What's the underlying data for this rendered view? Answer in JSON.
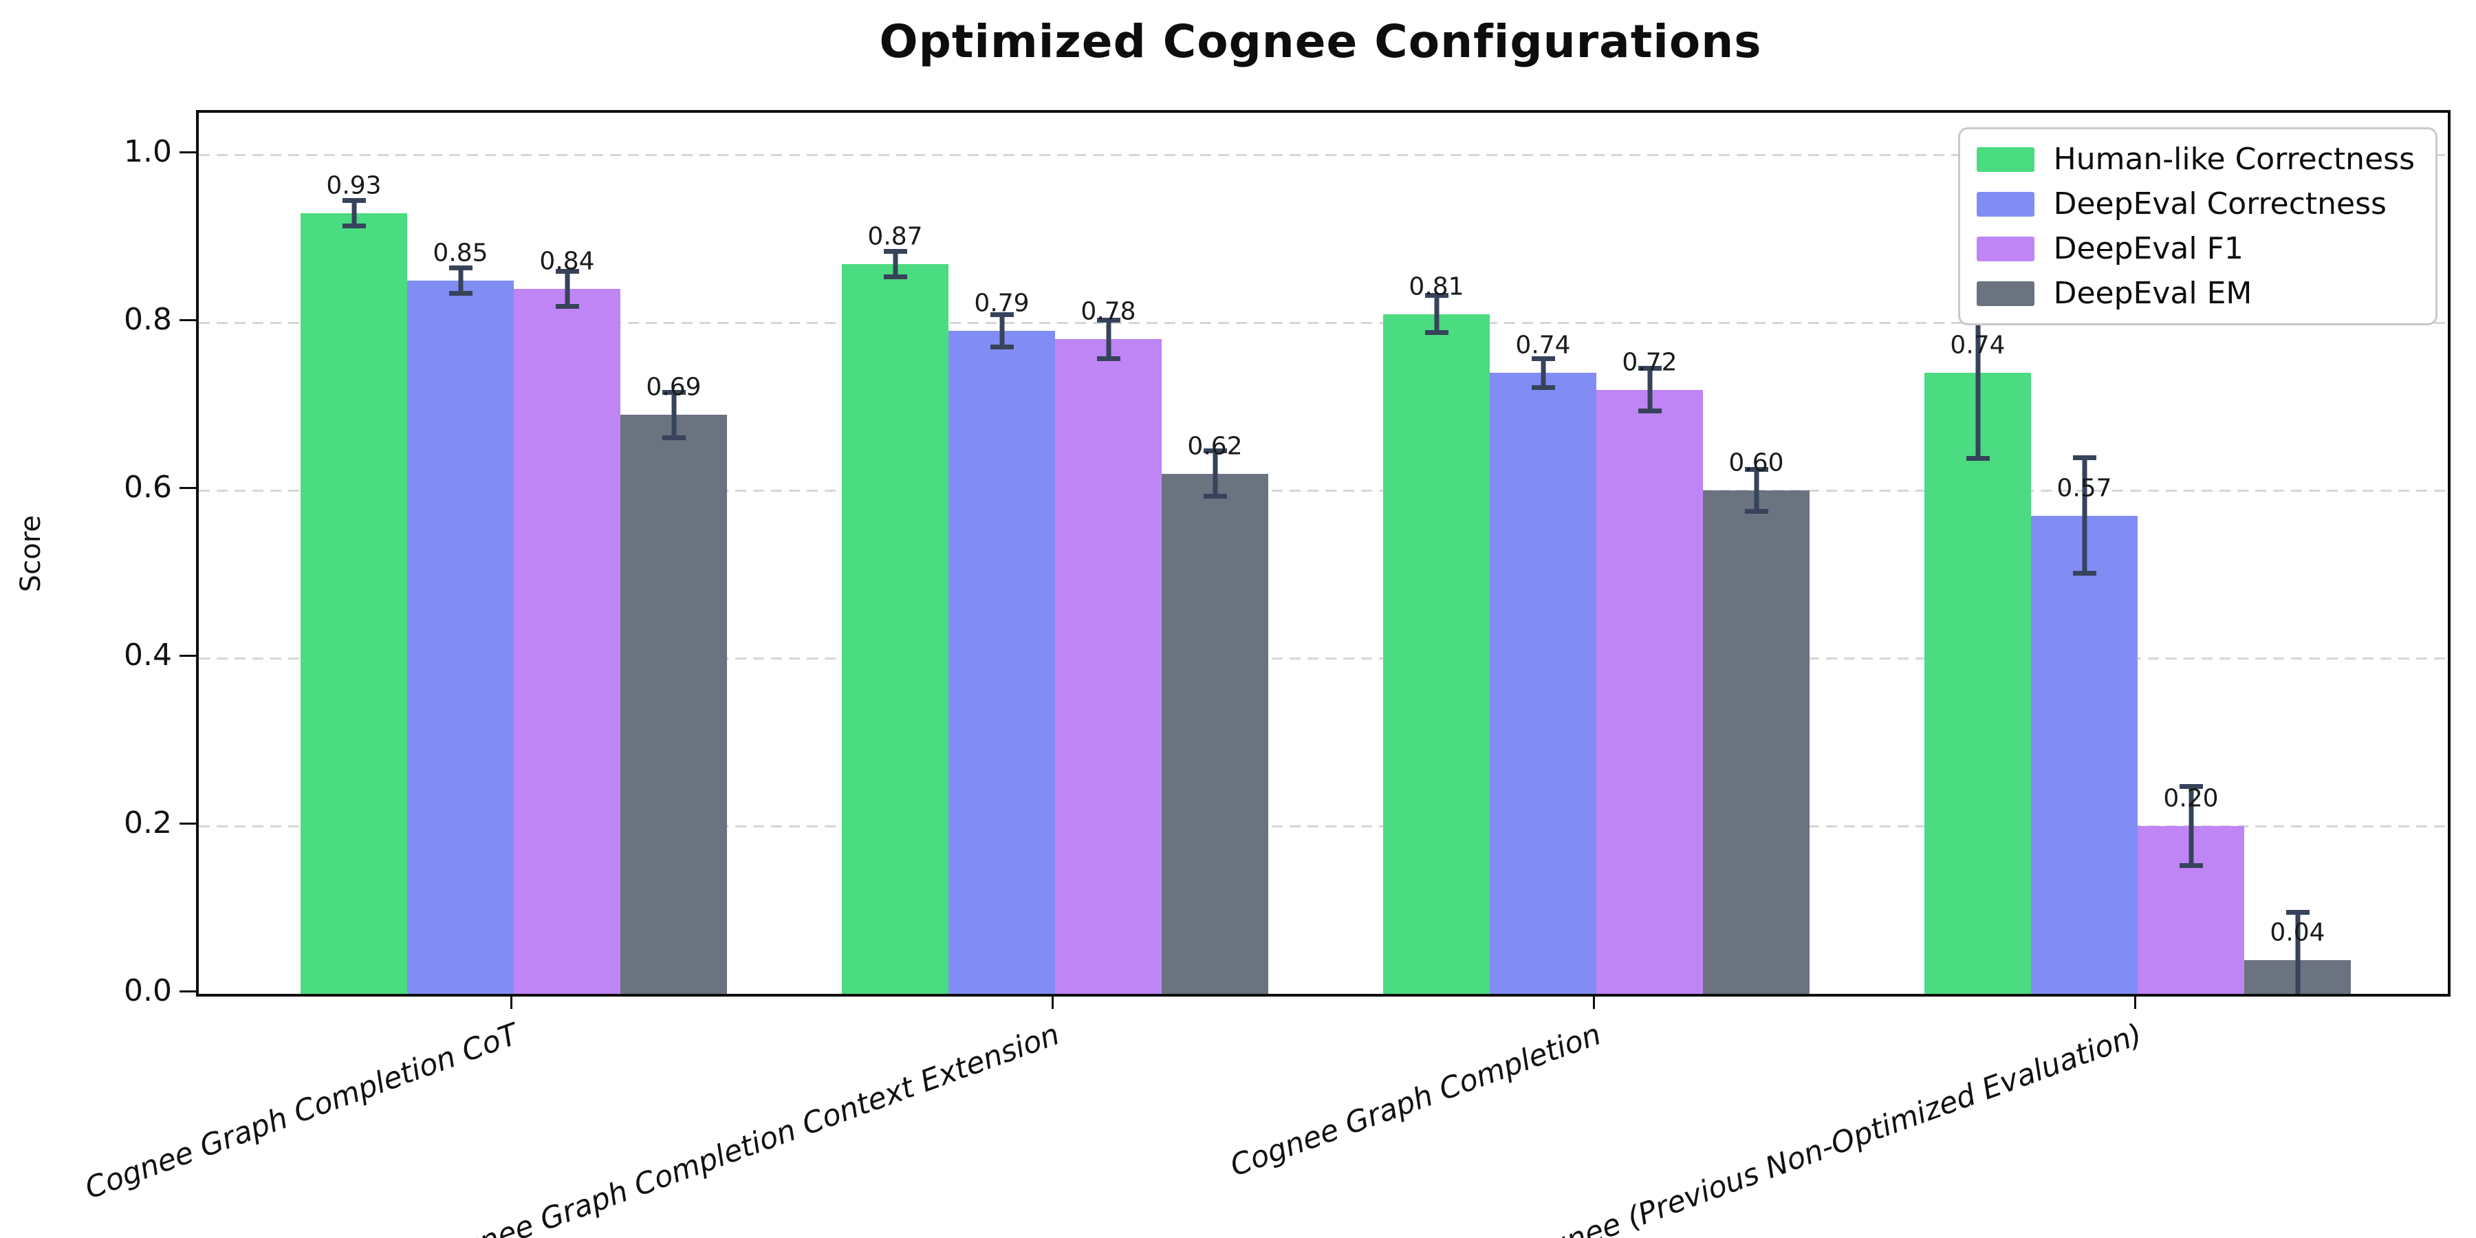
{
  "title": "Optimized Cognee Configurations",
  "colors": {
    "background": "#ffffff",
    "axis": "#0e0e0e",
    "grid": "#d6d6d6",
    "error_bar": "#36435a",
    "text": "#111111",
    "legend_border": "#c9c9c9"
  },
  "chart_data": {
    "type": "bar",
    "title": "Optimized Cognee Configurations",
    "xlabel": "",
    "ylabel": "Score",
    "ylim": [
      0,
      1.05
    ],
    "yticks": [
      0.0,
      0.2,
      0.4,
      0.6,
      0.8,
      1.0
    ],
    "grid": "horizontal-dashed",
    "legend_position": "upper-right",
    "bar_value_labels": true,
    "error_bars": true,
    "categories": [
      "Cognee Graph Completion CoT",
      "Cognee Graph Completion Context Extension",
      "Cognee Graph Completion",
      "Cognee (Previous Non-Optimized Evaluation)"
    ],
    "series": [
      {
        "name": "Human-like Correctness",
        "color": "#4bdb81",
        "values": [
          0.93,
          0.87,
          0.81,
          0.74
        ],
        "errors": [
          0.018,
          0.018,
          0.025,
          0.105
        ]
      },
      {
        "name": "DeepEval Correctness",
        "color": "#818df5",
        "values": [
          0.85,
          0.79,
          0.74,
          0.57
        ],
        "errors": [
          0.018,
          0.022,
          0.02,
          0.072
        ]
      },
      {
        "name": "DeepEval F1",
        "color": "#bf85f5",
        "values": [
          0.84,
          0.78,
          0.72,
          0.2
        ],
        "errors": [
          0.024,
          0.026,
          0.028,
          0.05
        ]
      },
      {
        "name": "DeepEval EM",
        "color": "#6b7380",
        "values": [
          0.69,
          0.62,
          0.6,
          0.04
        ],
        "errors": [
          0.03,
          0.03,
          0.028,
          0.06
        ]
      }
    ]
  }
}
